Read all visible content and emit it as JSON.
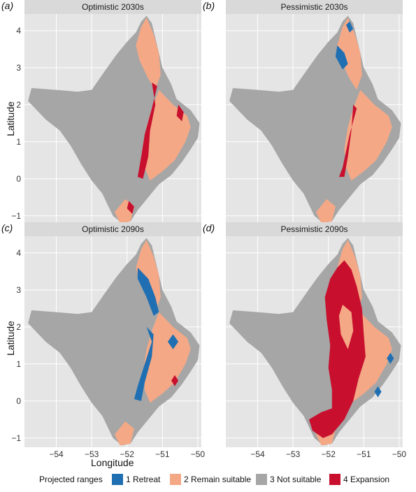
{
  "colors": {
    "retreat": "#1f6fb2",
    "remain": "#f4a886",
    "not_suitable": "#a6a6a6",
    "expansion": "#c8102e",
    "panel_bg": "#e5e5e5",
    "strip_bg": "#d9d9d9"
  },
  "axes": {
    "xlabel": "Longitude",
    "ylabel": "Latitude",
    "xlim": [
      -54.9,
      -49.9
    ],
    "ylim": [
      -1.25,
      4.45
    ],
    "x_ticks": [
      -54,
      -53,
      -52,
      -51,
      -50
    ],
    "x_tick_labels": [
      "−54",
      "−53",
      "−52",
      "−51",
      "−50"
    ],
    "y_ticks": [
      -1,
      0,
      1,
      2,
      3,
      4
    ],
    "y_tick_labels": [
      "−1",
      "0",
      "1",
      "2",
      "3",
      "4"
    ]
  },
  "panels": [
    {
      "letter": "(a)",
      "title": "Optimistic 2030s"
    },
    {
      "letter": "(b)",
      "title": "Pessimistic 2030s"
    },
    {
      "letter": "(c)",
      "title": "Optimistic 2090s"
    },
    {
      "letter": "(d)",
      "title": "Pessimistic 2090s"
    }
  ],
  "legend": {
    "title": "Projected ranges",
    "items": [
      {
        "label": "1 Retreat",
        "color": "#1f6fb2"
      },
      {
        "label": "2 Remain suitable",
        "color": "#f4a886"
      },
      {
        "label": "3 Not suitable",
        "color": "#a6a6a6"
      },
      {
        "label": "4 Expansion",
        "color": "#c8102e"
      }
    ]
  }
}
